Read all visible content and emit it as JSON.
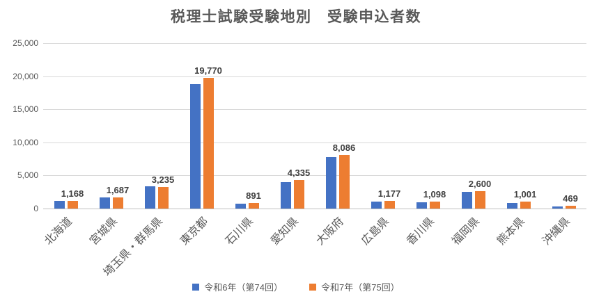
{
  "chart_data": {
    "type": "bar",
    "title": "税理士試験受験地別　受験申込者数",
    "categories": [
      "北海道",
      "宮城県",
      "埼玉県・群馬県",
      "東京都",
      "石川県",
      "愛知県",
      "大阪府",
      "広島県",
      "香川県",
      "福岡県",
      "熊本県",
      "沖縄県"
    ],
    "series": [
      {
        "name": "令和6年（第74回）",
        "color": "#4472C4",
        "values": [
          1190,
          1700,
          3330,
          18850,
          780,
          3990,
          7760,
          1080,
          900,
          2560,
          860,
          300
        ]
      },
      {
        "name": "令和7年（第75回）",
        "color": "#ED7D31",
        "values": [
          1168,
          1687,
          3235,
          19770,
          891,
          4335,
          8086,
          1177,
          1098,
          2600,
          1001,
          469
        ],
        "data_labels": [
          "1,168",
          "1,687",
          "3,235",
          "19,770",
          "891",
          "4,335",
          "8,086",
          "1,177",
          "1,098",
          "2,600",
          "1,001",
          "469"
        ]
      }
    ],
    "xlabel": "",
    "ylabel": "",
    "ylim": [
      0,
      25000
    ],
    "y_ticks": [
      "0",
      "5,000",
      "10,000",
      "15,000",
      "20,000",
      "25,000"
    ],
    "grid": true,
    "legend_position": "bottom",
    "colors": {
      "grid": "#D9D9D9",
      "axis": "#BFBFBF",
      "text": "#595959",
      "data_label": "#404040",
      "background": "#FFFFFF"
    }
  }
}
